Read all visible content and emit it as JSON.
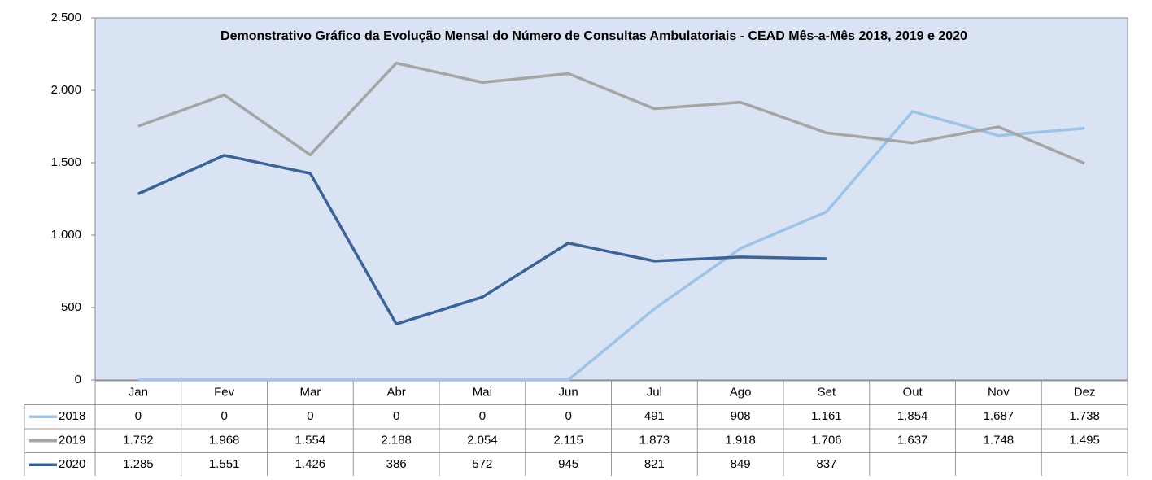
{
  "chart_data": {
    "type": "line",
    "title": "Demonstrativo Gráfico da Evolução Mensal do Número de Consultas Ambulatoriais - CEAD Mês-a-Mês 2018, 2019 e 2020",
    "categories": [
      "Jan",
      "Fev",
      "Mar",
      "Abr",
      "Mai",
      "Jun",
      "Jul",
      "Ago",
      "Set",
      "Out",
      "Nov",
      "Dez"
    ],
    "series": [
      {
        "name": "2018",
        "color": "#9dc3e6",
        "values": [
          0,
          0,
          0,
          0,
          0,
          0,
          491,
          908,
          1161,
          1854,
          1687,
          1738
        ],
        "value_labels": [
          "0",
          "0",
          "0",
          "0",
          "0",
          "0",
          "491",
          "908",
          "1.161",
          "1.854",
          "1.687",
          "1.738"
        ]
      },
      {
        "name": "2019",
        "color": "#a5a5a5",
        "values": [
          1752,
          1968,
          1554,
          2188,
          2054,
          2115,
          1873,
          1918,
          1706,
          1637,
          1748,
          1495
        ],
        "value_labels": [
          "1.752",
          "1.968",
          "1.554",
          "2.188",
          "2.054",
          "2.115",
          "1.873",
          "1.918",
          "1.706",
          "1.637",
          "1.748",
          "1.495"
        ]
      },
      {
        "name": "2020",
        "color": "#3b6396",
        "values": [
          1285,
          1551,
          1426,
          386,
          572,
          945,
          821,
          849,
          837,
          null,
          null,
          null
        ],
        "value_labels": [
          "1.285",
          "1.551",
          "1.426",
          "386",
          "572",
          "945",
          "821",
          "849",
          "837",
          null,
          null,
          null
        ]
      }
    ],
    "ylim": [
      0,
      2500
    ],
    "yticks": [
      0,
      500,
      {
        "value": 1000,
        "label": "1.000"
      },
      {
        "value": 1500,
        "label": "1.500"
      },
      {
        "value": 2000,
        "label": "2.000"
      },
      {
        "value": 2500,
        "label": "2.500"
      }
    ],
    "grid": false
  }
}
